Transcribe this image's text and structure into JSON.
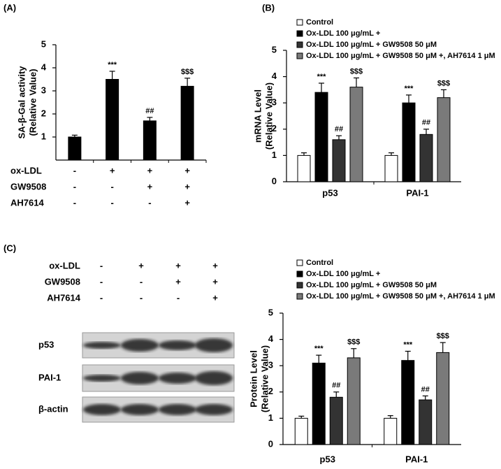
{
  "panel_labels": [
    "(A)",
    "(B)",
    "(C)"
  ],
  "chart_data": [
    {
      "type": "bar",
      "ylabel": [
        "SA-β-Gal activity",
        "(Relative Value)"
      ],
      "values": [
        1,
        3.5,
        1.7,
        3.2
      ],
      "errors": [
        0.08,
        0.35,
        0.15,
        0.35
      ],
      "annotations": [
        null,
        "***",
        "##",
        "$$$"
      ],
      "color": "#000000",
      "ylim": [
        0,
        5
      ],
      "yticks": [
        1,
        2,
        3,
        4,
        5
      ],
      "treatments": [
        {
          "name": "ox-LDL",
          "signs": [
            "-",
            "+",
            "+",
            "+"
          ]
        },
        {
          "name": "GW9508",
          "signs": [
            "-",
            "-",
            "+",
            "+"
          ]
        },
        {
          "name": "AH7614",
          "signs": [
            "-",
            "-",
            "-",
            "+"
          ]
        }
      ]
    },
    {
      "type": "grouped-bar",
      "ylabel": [
        "mRNA Level",
        "(Relative Value)"
      ],
      "categories": [
        "p53",
        "PAI-1"
      ],
      "ylim": [
        0,
        5
      ],
      "yticks": [
        0,
        1,
        2,
        3,
        4,
        5
      ],
      "series": [
        {
          "name": "Control",
          "color": "#ffffff",
          "values": [
            1,
            1
          ],
          "errors": [
            0.1,
            0.1
          ],
          "annotations": [
            null,
            null
          ]
        },
        {
          "name": "Ox-LDL 100 μg/mL +",
          "color": "#000000",
          "values": [
            3.4,
            3.0
          ],
          "errors": [
            0.35,
            0.3
          ],
          "annotations": [
            "***",
            "***"
          ]
        },
        {
          "name": "Ox-LDL 100 μg/mL + GW9508 50 μM",
          "color": "#333333",
          "values": [
            1.6,
            1.8
          ],
          "errors": [
            0.15,
            0.2
          ],
          "annotations": [
            "##",
            "##"
          ]
        },
        {
          "name": "Ox-LDL 100 μg/mL + GW9508 50 μM +,  AH7614 1 μM",
          "color": "#7a7a7a",
          "values": [
            3.6,
            3.2
          ],
          "errors": [
            0.35,
            0.3
          ],
          "annotations": [
            "$$$",
            "$$$"
          ]
        }
      ]
    },
    {
      "type": "grouped-bar",
      "ylabel": [
        "Protein Level",
        "(Relative Value)"
      ],
      "categories": [
        "p53",
        "PAI-1"
      ],
      "ylim": [
        0,
        5
      ],
      "yticks": [
        0,
        1,
        2,
        3,
        4,
        5
      ],
      "series": [
        {
          "name": "Control",
          "color": "#ffffff",
          "values": [
            1,
            1
          ],
          "errors": [
            0.08,
            0.1
          ],
          "annotations": [
            null,
            null
          ]
        },
        {
          "name": "Ox-LDL 100 μg/mL +",
          "color": "#000000",
          "values": [
            3.1,
            3.2
          ],
          "errors": [
            0.3,
            0.35
          ],
          "annotations": [
            "***",
            "***"
          ]
        },
        {
          "name": "Ox-LDL 100 μg/mL + GW9508 50 μM",
          "color": "#333333",
          "values": [
            1.8,
            1.7
          ],
          "errors": [
            0.2,
            0.15
          ],
          "annotations": [
            "##",
            "##"
          ]
        },
        {
          "name": "Ox-LDL 100 μg/mL + GW9508 50 μM +,  AH7614 1 μM",
          "color": "#7a7a7a",
          "values": [
            3.3,
            3.5
          ],
          "errors": [
            0.35,
            0.38
          ],
          "annotations": [
            "$$$",
            "$$$"
          ]
        }
      ]
    }
  ],
  "blot": {
    "treatments": [
      {
        "name": "ox-LDL",
        "signs": [
          "-",
          "+",
          "+",
          "+"
        ]
      },
      {
        "name": "GW9508",
        "signs": [
          "-",
          "-",
          "+",
          "+"
        ]
      },
      {
        "name": "AH7614",
        "signs": [
          "-",
          "-",
          "-",
          "+"
        ]
      }
    ],
    "rows": [
      "p53",
      "PAI-1",
      "β-actin"
    ]
  }
}
